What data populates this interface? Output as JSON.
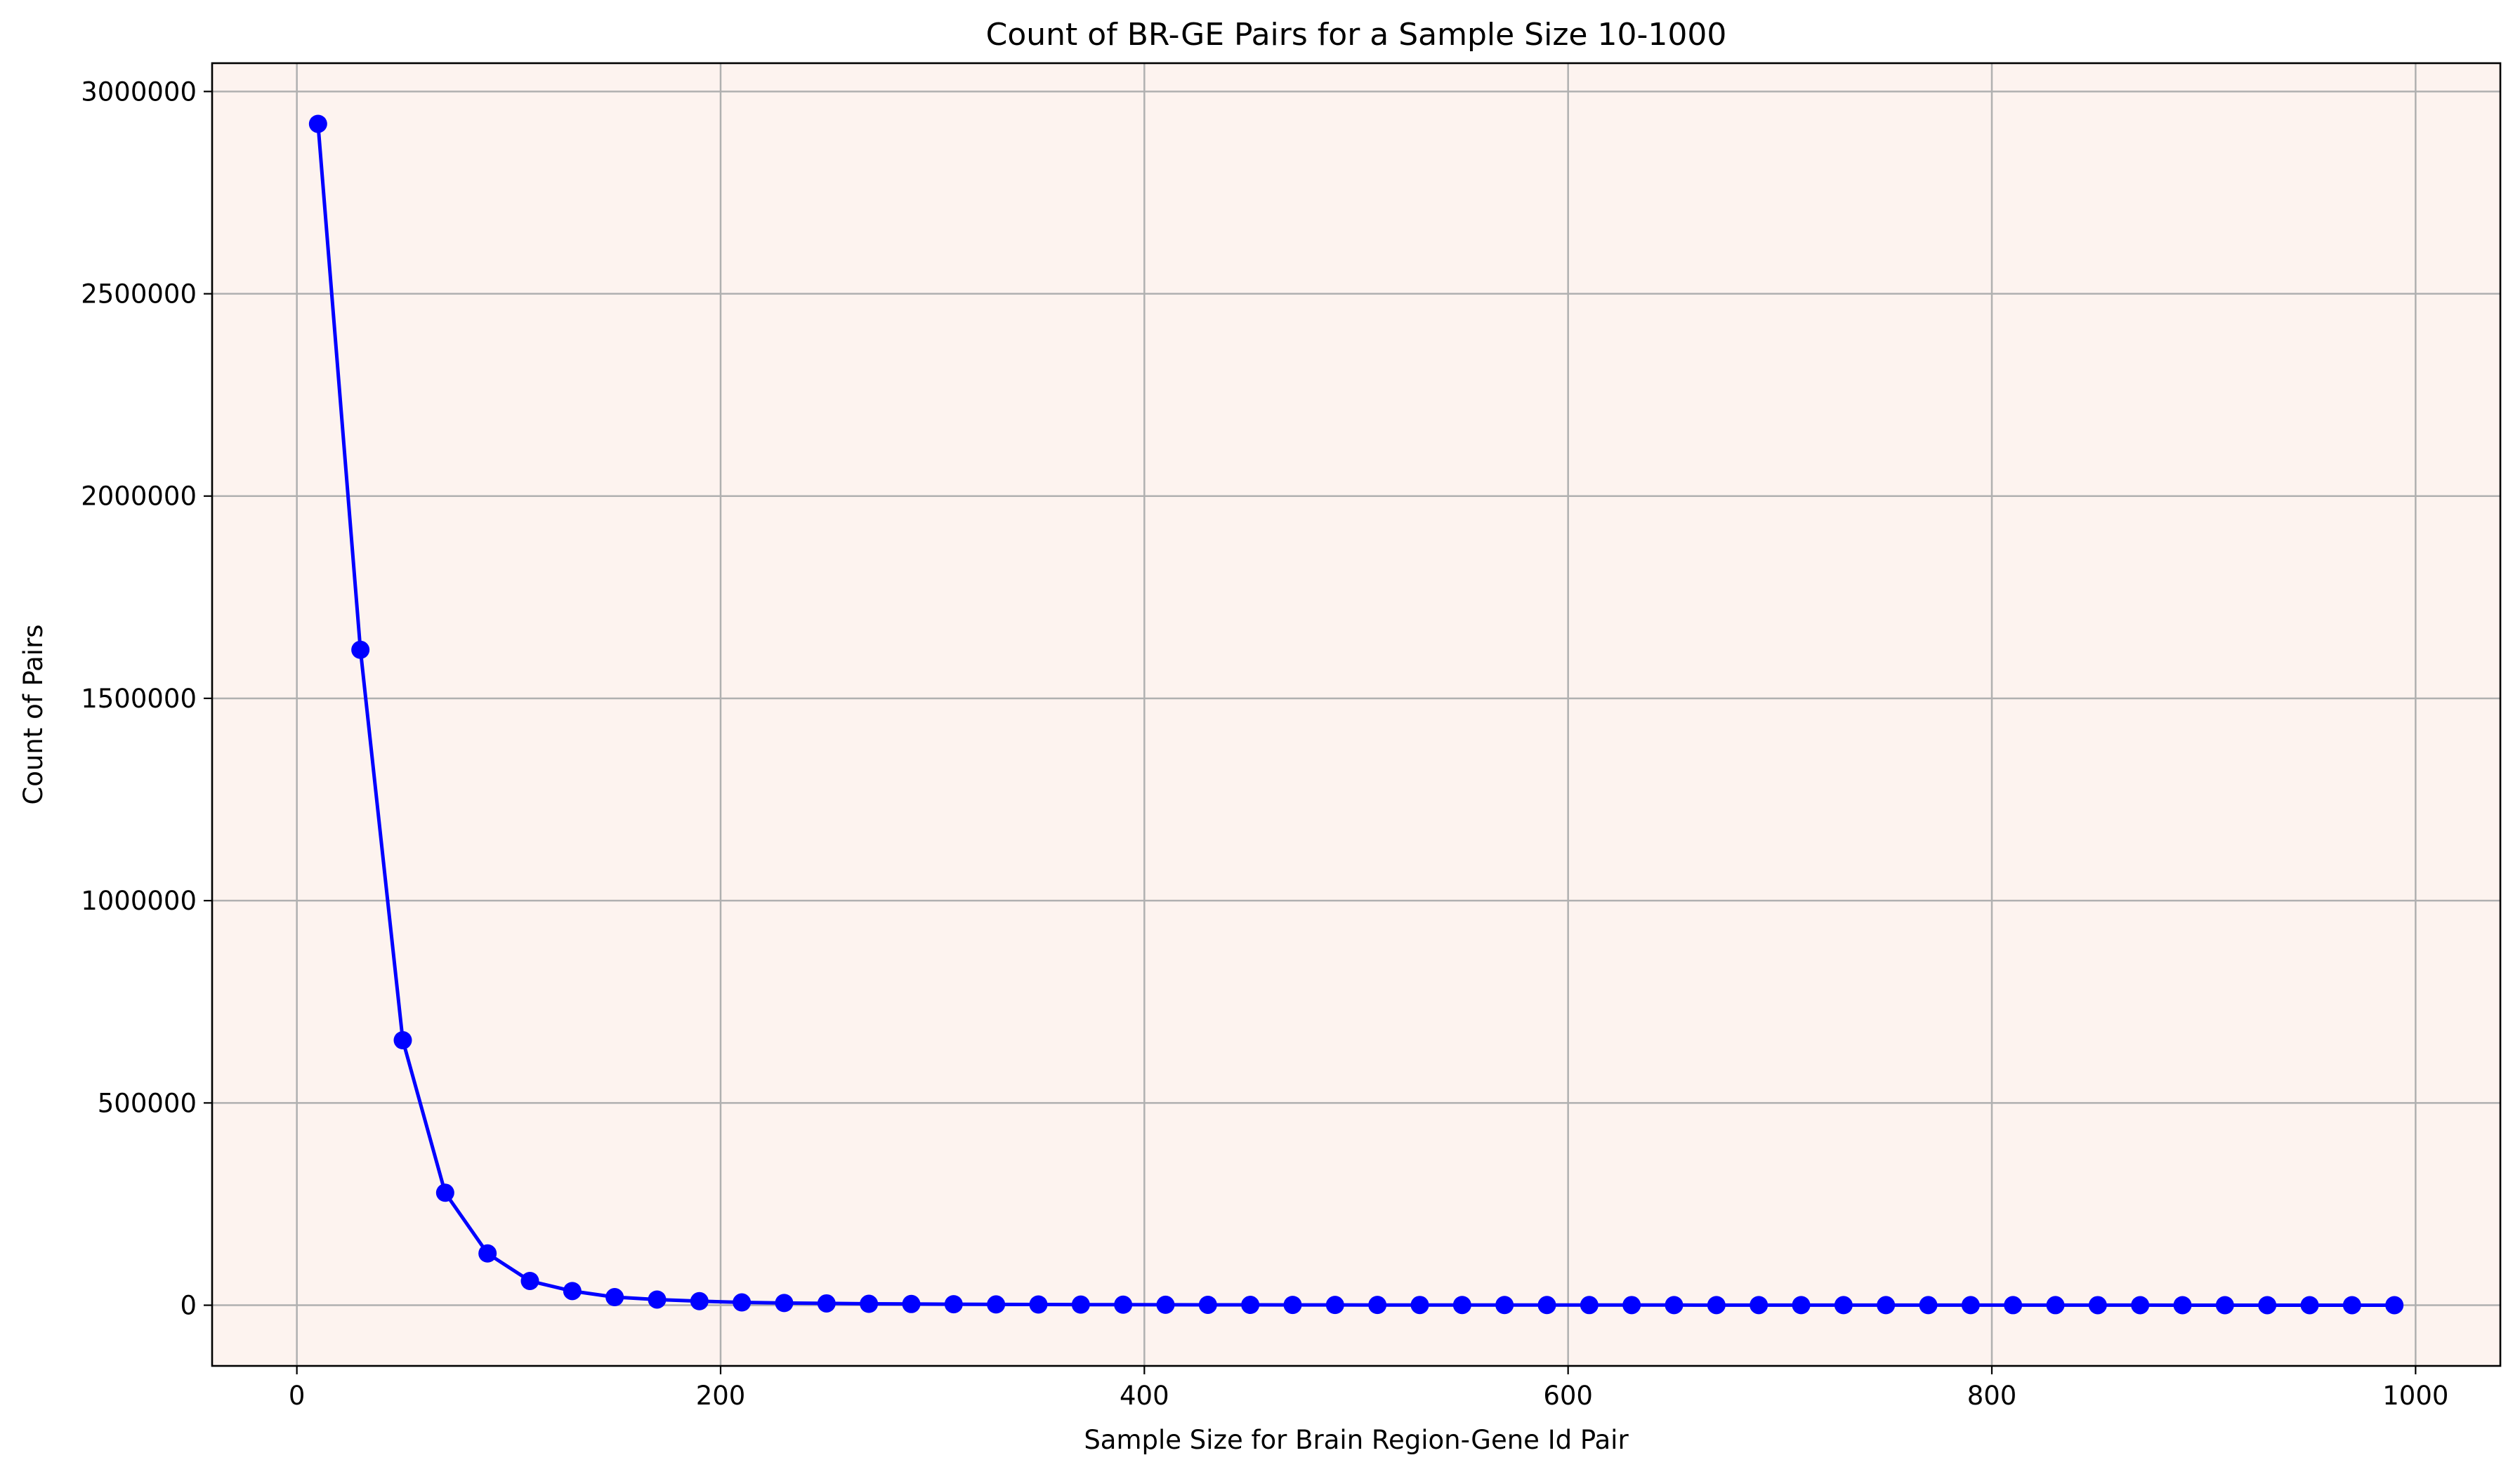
{
  "chart_data": {
    "type": "line",
    "title": "Count of BR-GE Pairs for a Sample Size 10-1000",
    "xlabel": "Sample Size for Brain Region-Gene Id Pair",
    "ylabel": "Count of Pairs",
    "xlim": [
      -40,
      1040
    ],
    "ylim": [
      -150000,
      3070000
    ],
    "xticks": [
      0,
      200,
      400,
      600,
      800,
      1000
    ],
    "xtick_labels": [
      "0",
      "200",
      "400",
      "600",
      "800",
      "1000"
    ],
    "yticks": [
      0,
      500000,
      1000000,
      1500000,
      2000000,
      2500000,
      3000000
    ],
    "ytick_labels": [
      "0",
      "500000",
      "1000000",
      "1500000",
      "2000000",
      "2500000",
      "3000000"
    ],
    "grid": true,
    "background_color": "#fdf3ef",
    "series": [
      {
        "color": "#0000ff",
        "marker": "circle",
        "x": [
          10,
          30,
          50,
          70,
          90,
          110,
          130,
          150,
          170,
          190,
          210,
          230,
          250,
          270,
          290,
          310,
          330,
          350,
          370,
          390,
          410,
          430,
          450,
          470,
          490,
          510,
          530,
          550,
          570,
          590,
          610,
          630,
          650,
          670,
          690,
          710,
          730,
          750,
          770,
          790,
          810,
          830,
          850,
          870,
          890,
          910,
          930,
          950,
          970,
          990
        ],
        "y": [
          2920000,
          1620000,
          655000,
          278000,
          128000,
          60000,
          35000,
          20000,
          14000,
          10000,
          7000,
          5500,
          4500,
          3500,
          3000,
          2500,
          2000,
          1800,
          1500,
          1300,
          1100,
          1000,
          900,
          800,
          700,
          650,
          600,
          550,
          500,
          450,
          400,
          380,
          350,
          320,
          300,
          280,
          260,
          240,
          220,
          200,
          190,
          180,
          170,
          160,
          150,
          140,
          130,
          120,
          110,
          100
        ]
      }
    ]
  }
}
